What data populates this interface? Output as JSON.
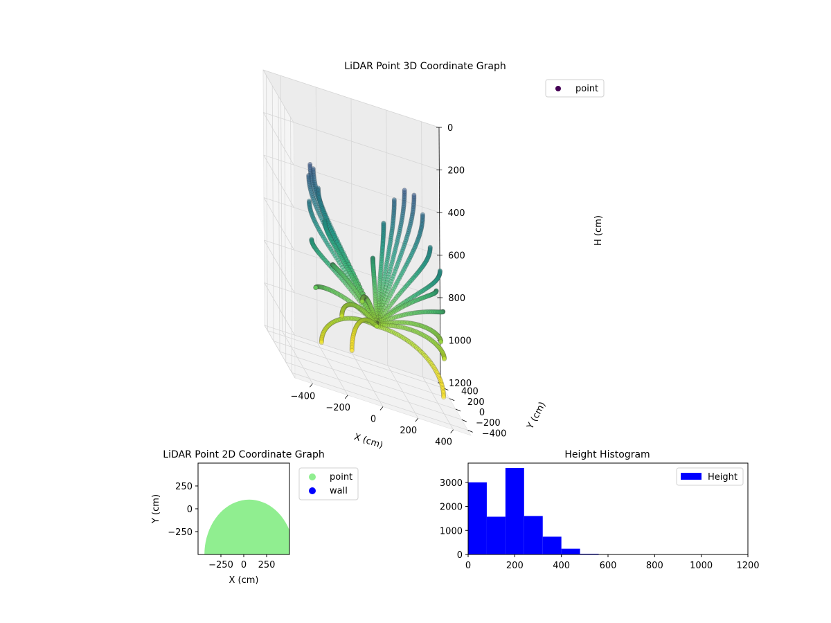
{
  "chart_data": [
    {
      "type": "scatter",
      "dimensions": 3,
      "title": "LiDAR Point 3D Coordinate Graph",
      "xlabel": "X (cm)",
      "ylabel": "Y (cm)",
      "zlabel": "H (cm)",
      "xticks": [
        -400,
        -200,
        0,
        200,
        400
      ],
      "yticks": [
        -400,
        -200,
        0,
        200,
        400
      ],
      "zticks": [
        0,
        200,
        400,
        600,
        800,
        1000,
        1200
      ],
      "xlim": [
        -500,
        500
      ],
      "ylim": [
        -500,
        500
      ],
      "zlim": [
        0,
        1200
      ],
      "z_inverted": true,
      "grid": true,
      "colormap": "viridis",
      "legend": {
        "placement": "top-right",
        "entries": [
          {
            "label": "point",
            "color": "#440154"
          }
        ]
      }
    },
    {
      "type": "scatter",
      "title": "LiDAR Point 2D Coordinate Graph",
      "xlabel": "X (cm)",
      "ylabel": "Y (cm)",
      "xticks": [
        -250,
        0,
        250
      ],
      "yticks": [
        -250,
        0,
        250
      ],
      "xlim": [
        -500,
        500
      ],
      "ylim": [
        -500,
        500
      ],
      "series": [
        {
          "name": "point",
          "color": "#90ee90"
        },
        {
          "name": "wall",
          "color": "#0000ff"
        }
      ],
      "legend": {
        "placement": "outside-right"
      }
    },
    {
      "type": "bar",
      "title": "Height Histogram",
      "xticks": [
        0,
        200,
        400,
        600,
        800,
        1000,
        1200
      ],
      "yticks": [
        0,
        1000,
        2000,
        3000
      ],
      "xlim": [
        0,
        1200
      ],
      "ylim": [
        0,
        3800
      ],
      "bin_width": 80,
      "bins": [
        {
          "x0": 0,
          "x1": 80,
          "count": 3000
        },
        {
          "x0": 80,
          "x1": 160,
          "count": 1570
        },
        {
          "x0": 160,
          "x1": 240,
          "count": 3600
        },
        {
          "x0": 240,
          "x1": 320,
          "count": 1600
        },
        {
          "x0": 320,
          "x1": 400,
          "count": 740
        },
        {
          "x0": 400,
          "x1": 480,
          "count": 240
        },
        {
          "x0": 480,
          "x1": 560,
          "count": 30
        },
        {
          "x0": 560,
          "x1": 640,
          "count": 4
        },
        {
          "x0": 640,
          "x1": 720,
          "count": 1
        }
      ],
      "color": "#0000ff",
      "legend": {
        "placement": "top-right",
        "entries": [
          {
            "label": "Height",
            "color": "#0000ff"
          }
        ]
      }
    }
  ]
}
